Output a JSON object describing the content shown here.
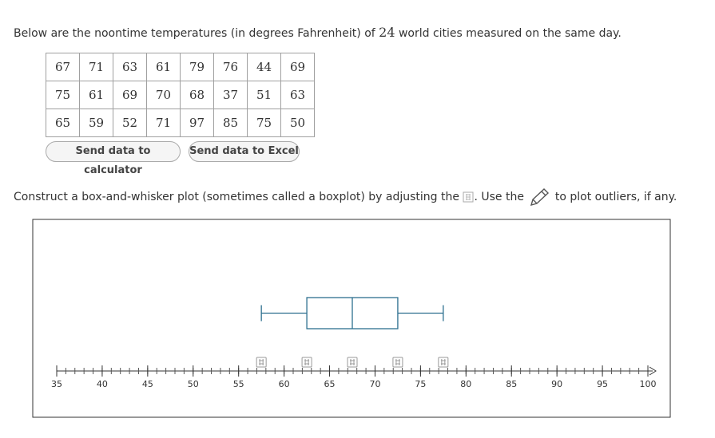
{
  "intro": {
    "before": "Below are the noontime temperatures (in degrees Fahrenheit) of",
    "count": 24,
    "after": "world cities measured on the same day."
  },
  "table": {
    "rows": [
      [
        67,
        71,
        63,
        61,
        79,
        76,
        44,
        69
      ],
      [
        75,
        61,
        69,
        70,
        68,
        37,
        51,
        63
      ],
      [
        65,
        59,
        52,
        71,
        97,
        85,
        75,
        50
      ]
    ]
  },
  "buttons": [
    "Send data to calculator",
    "Send data to Excel"
  ],
  "instruction": {
    "before": "Construct a box-and-whisker plot (sometimes called a boxplot) by adjusting the",
    "middle": ". Use the",
    "after": "to plot outliers, if any."
  },
  "axis": {
    "min": 35,
    "max": 100,
    "minor_step": 1,
    "labels": [
      35,
      40,
      45,
      50,
      55,
      60,
      65,
      70,
      75,
      80,
      85,
      90,
      95,
      100
    ]
  },
  "boxplot": {
    "min": 57.5,
    "q1": 62.5,
    "median": 67.5,
    "q3": 72.5,
    "max": 77.5
  }
}
